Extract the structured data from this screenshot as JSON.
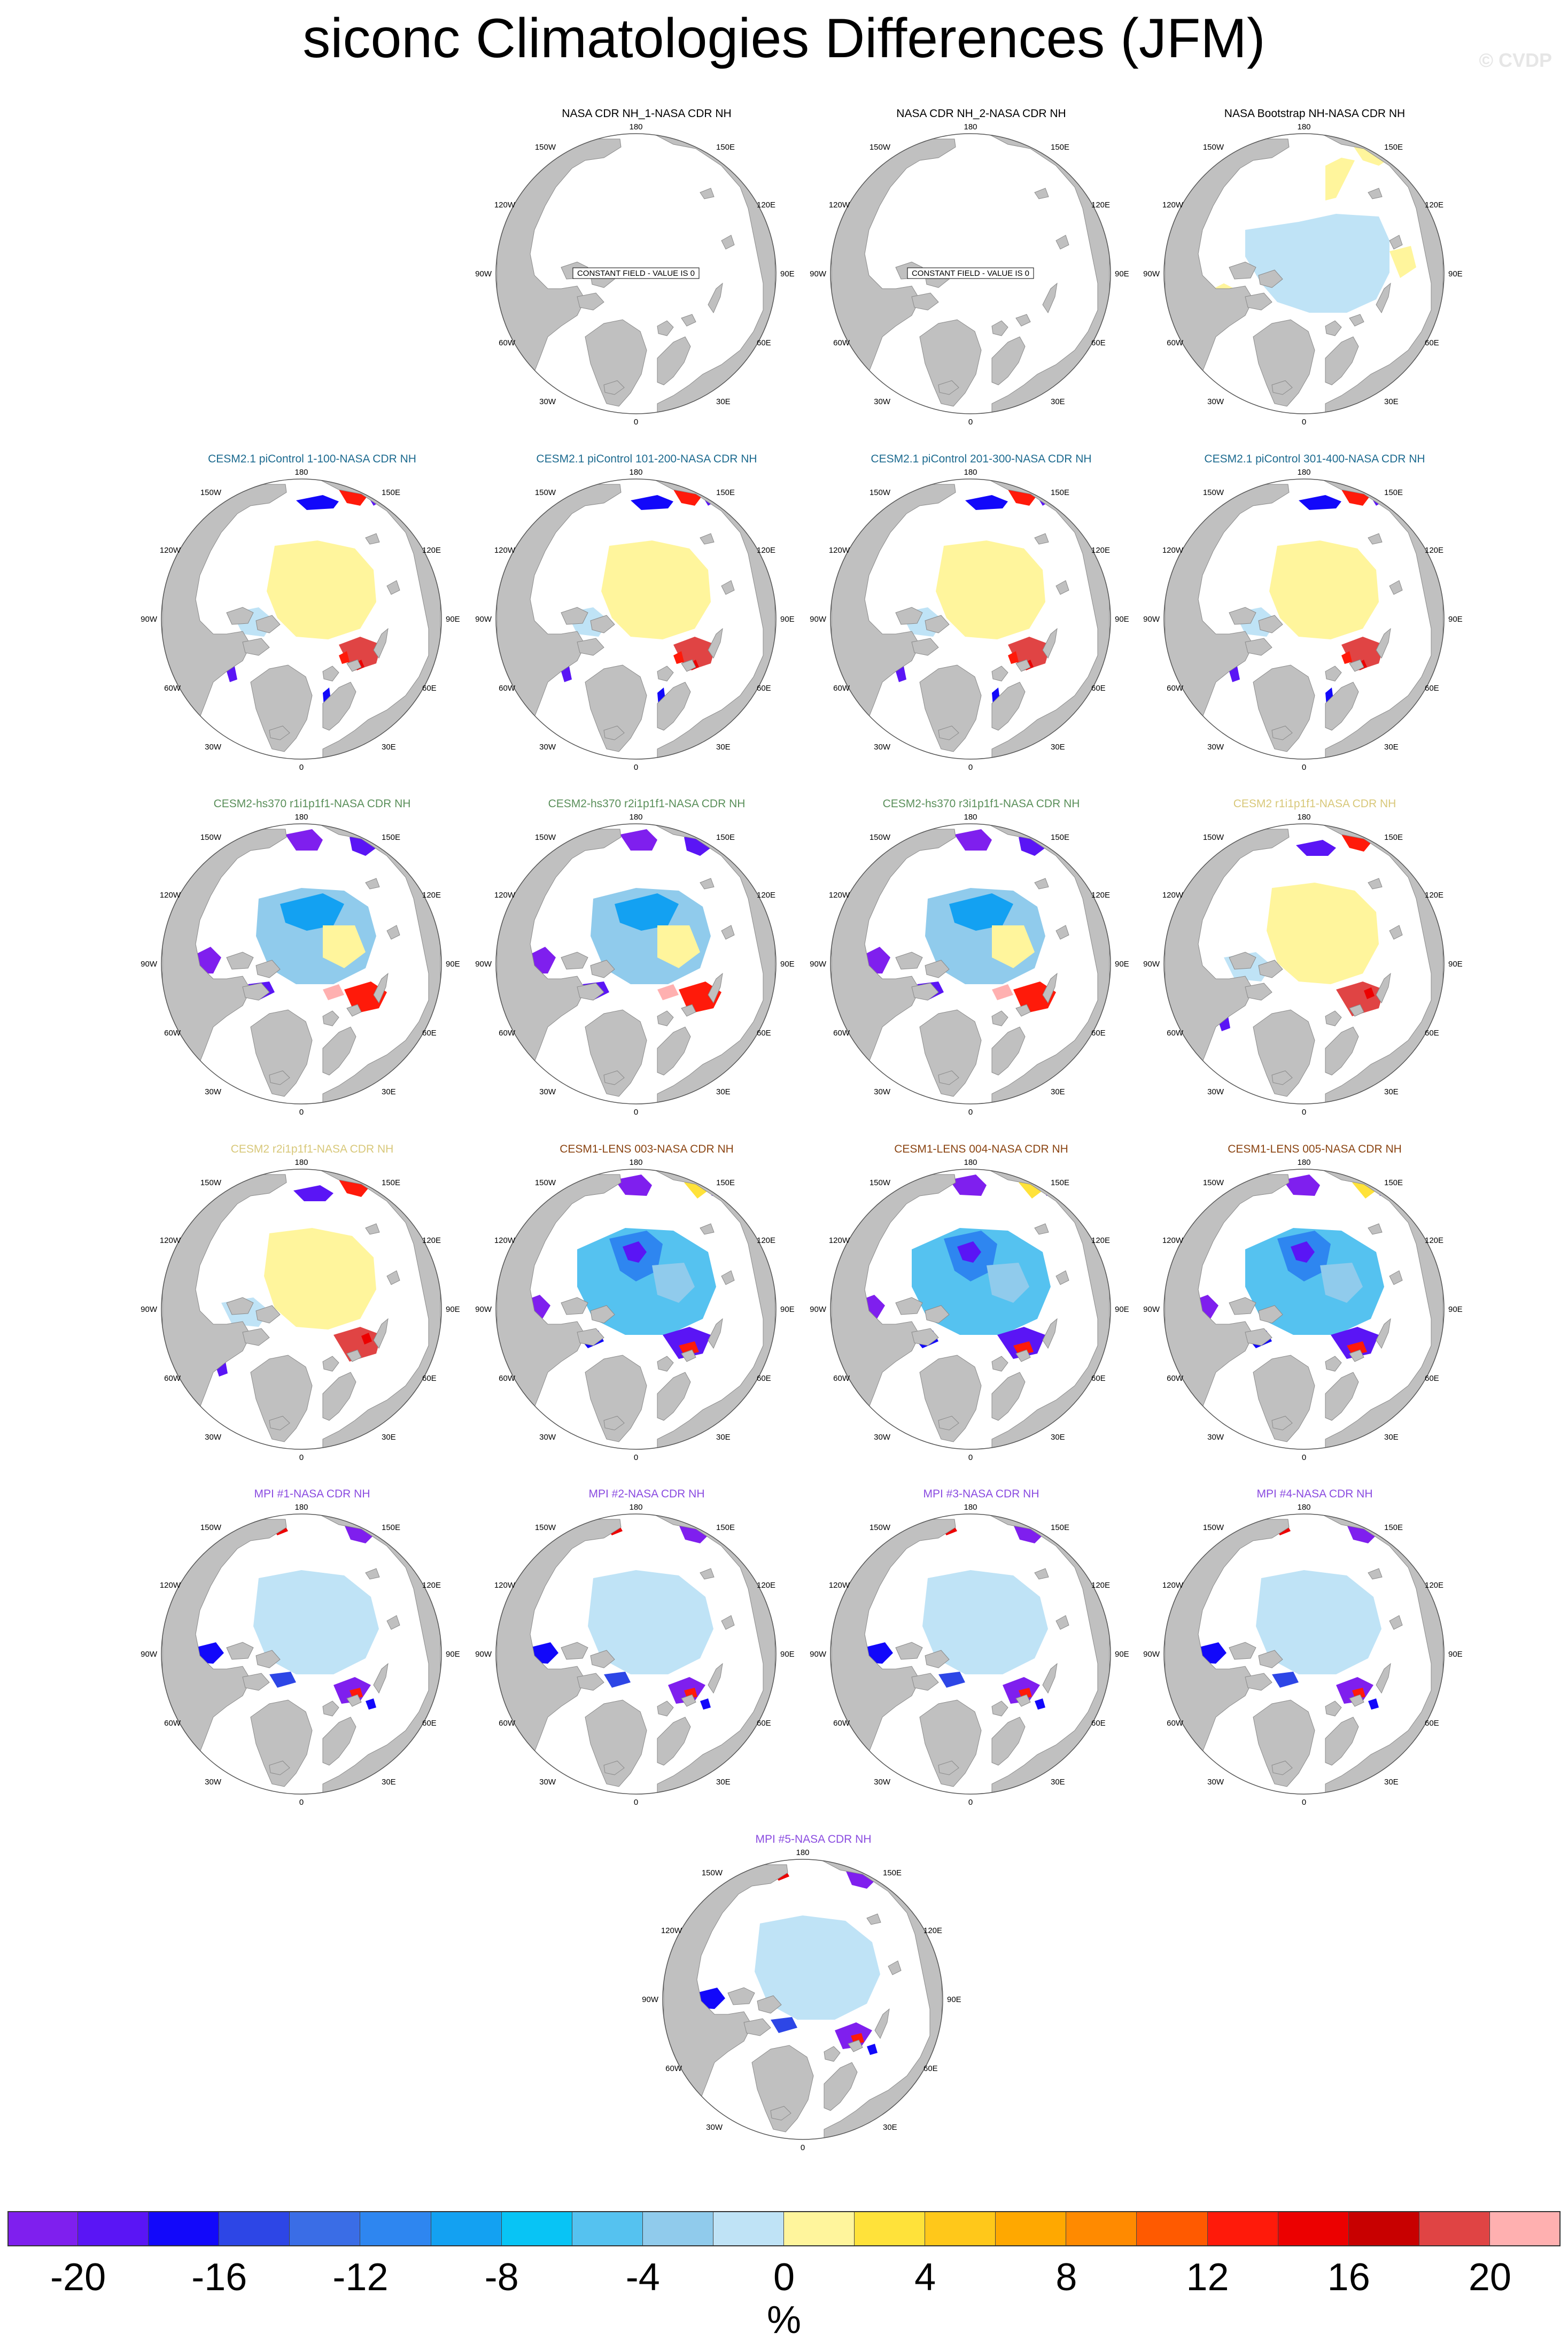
{
  "title": "siconc Climatologies Differences (JFM)",
  "watermark": "© CVDP",
  "map_labels": {
    "top": "180",
    "bottom": "0",
    "upper_left": "150W",
    "upper_right": "150E",
    "mid_upper_left": "120W",
    "mid_upper_right": "120E",
    "left": "90W",
    "right": "90E",
    "mid_lower_left": "60W",
    "mid_lower_right": "60E",
    "lower_left": "30W",
    "lower_right": "30E"
  },
  "panels": [
    {
      "title": "NASA CDR NH_1-NASA CDR NH",
      "title_color": "#000000",
      "pattern": "none",
      "note": "CONSTANT FIELD - VALUE IS 0"
    },
    {
      "title": "NASA CDR NH_2-NASA CDR NH",
      "title_color": "#000000",
      "pattern": "none",
      "note": "CONSTANT FIELD - VALUE IS 0"
    },
    {
      "title": "NASA Bootstrap NH-NASA CDR NH",
      "title_color": "#000000",
      "pattern": "bootstrap",
      "note": ""
    },
    {
      "title": "CESM2.1 piControl 1-100-NASA CDR NH",
      "title_color": "#1c6a8f",
      "pattern": "cesm21",
      "note": ""
    },
    {
      "title": "CESM2.1 piControl 101-200-NASA CDR NH",
      "title_color": "#1c6a8f",
      "pattern": "cesm21",
      "note": ""
    },
    {
      "title": "CESM2.1 piControl 201-300-NASA CDR NH",
      "title_color": "#1c6a8f",
      "pattern": "cesm21",
      "note": ""
    },
    {
      "title": "CESM2.1 piControl 301-400-NASA CDR NH",
      "title_color": "#1c6a8f",
      "pattern": "cesm21",
      "note": ""
    },
    {
      "title": "CESM2-hs370 r1i1p1f1-NASA CDR NH",
      "title_color": "#5a8f5a",
      "pattern": "hs370",
      "note": ""
    },
    {
      "title": "CESM2-hs370 r2i1p1f1-NASA CDR NH",
      "title_color": "#5a8f5a",
      "pattern": "hs370",
      "note": ""
    },
    {
      "title": "CESM2-hs370 r3i1p1f1-NASA CDR NH",
      "title_color": "#5a8f5a",
      "pattern": "hs370",
      "note": ""
    },
    {
      "title": "CESM2 r1i1p1f1-NASA CDR NH",
      "title_color": "#d8c87a",
      "pattern": "cesm2",
      "note": ""
    },
    {
      "title": "CESM2 r2i1p1f1-NASA CDR NH",
      "title_color": "#d8c87a",
      "pattern": "cesm2",
      "note": ""
    },
    {
      "title": "CESM1-LENS 003-NASA CDR NH",
      "title_color": "#8b4513",
      "pattern": "lens",
      "note": ""
    },
    {
      "title": "CESM1-LENS 004-NASA CDR NH",
      "title_color": "#8b4513",
      "pattern": "lens",
      "note": ""
    },
    {
      "title": "CESM1-LENS 005-NASA CDR NH",
      "title_color": "#8b4513",
      "pattern": "lens",
      "note": ""
    },
    {
      "title": "MPI #1-NASA CDR NH",
      "title_color": "#8a4be0",
      "pattern": "mpi",
      "note": ""
    },
    {
      "title": "MPI #2-NASA CDR NH",
      "title_color": "#8a4be0",
      "pattern": "mpi",
      "note": ""
    },
    {
      "title": "MPI #3-NASA CDR NH",
      "title_color": "#8a4be0",
      "pattern": "mpi",
      "note": ""
    },
    {
      "title": "MPI #4-NASA CDR NH",
      "title_color": "#8a4be0",
      "pattern": "mpi",
      "note": ""
    },
    {
      "title": "MPI #5-NASA CDR NH",
      "title_color": "#8a4be0",
      "pattern": "mpi",
      "note": ""
    }
  ],
  "colorbar": {
    "unit": "%",
    "tick_labels": [
      "-20",
      "-16",
      "-12",
      "-8",
      "-4",
      "0",
      "4",
      "8",
      "12",
      "16",
      "20"
    ],
    "levels": [
      -22,
      -20,
      -18,
      -16,
      -14,
      -12,
      -10,
      -8,
      -6,
      -4,
      -2,
      0,
      2,
      4,
      6,
      8,
      10,
      12,
      14,
      16,
      18,
      20,
      22
    ],
    "colors": [
      "#7f1fee",
      "#5a15f5",
      "#1208fa",
      "#2d46e6",
      "#3a6de6",
      "#2e86f0",
      "#13a1f2",
      "#08c4f5",
      "#55c2f0",
      "#90cbec",
      "#bfe3f6",
      "#fff59c",
      "#ffe23a",
      "#ffc81a",
      "#ffa800",
      "#ff8a00",
      "#ff5a00",
      "#ff1a0a",
      "#ec0000",
      "#c80000",
      "#e04444",
      "#ffb0b0"
    ]
  }
}
